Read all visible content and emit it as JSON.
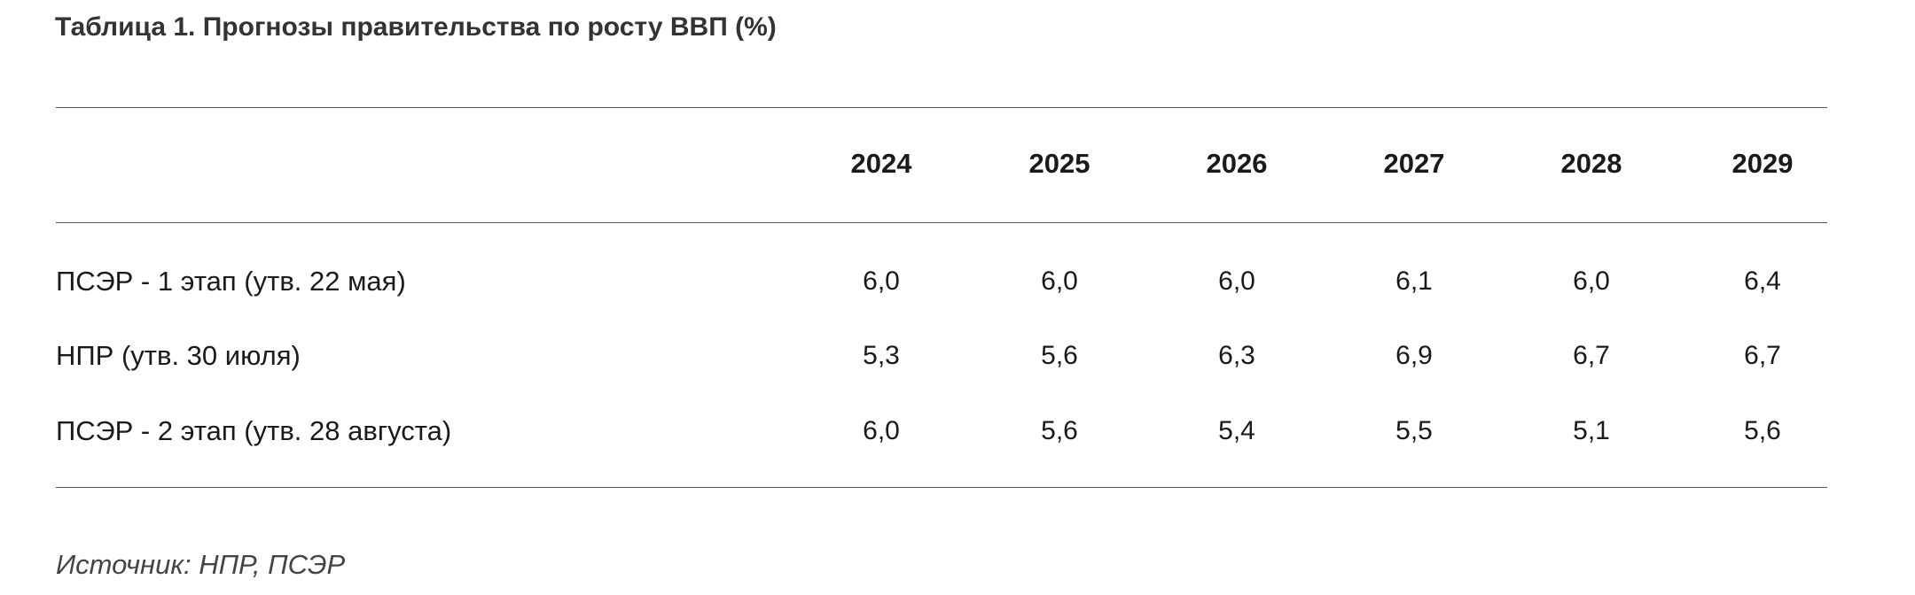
{
  "title": "Таблица 1. Прогнозы правительства по росту ВВП (%)",
  "table": {
    "columns": [
      "2024",
      "2025",
      "2026",
      "2027",
      "2028",
      "2029"
    ],
    "rows": [
      {
        "label": "ПСЭР - 1 этап (утв. 22 мая)",
        "values": [
          "6,0",
          "6,0",
          "6,0",
          "6,1",
          "6,0",
          "6,4"
        ]
      },
      {
        "label": "НПР (утв. 30 июля)",
        "values": [
          "5,3",
          "5,6",
          "6,3",
          "6,9",
          "6,7",
          "6,7"
        ]
      },
      {
        "label": "ПСЭР - 2 этап (утв. 28 августа)",
        "values": [
          "6,0",
          "5,6",
          "5,4",
          "5,5",
          "5,1",
          "5,6"
        ]
      }
    ]
  },
  "source": "Источник: НПР, ПСЭР"
}
